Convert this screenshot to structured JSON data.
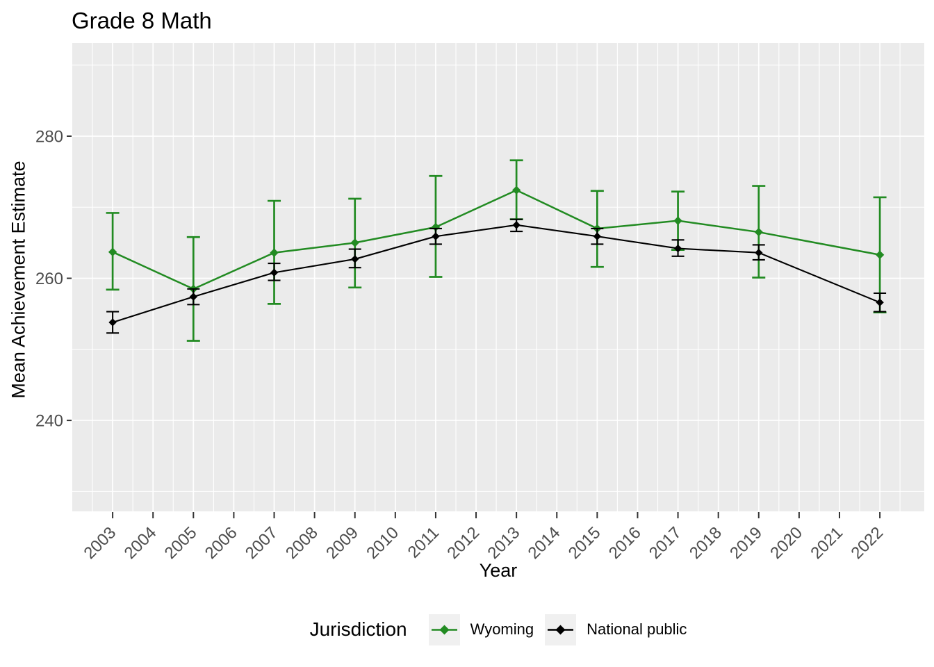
{
  "title": "Grade 8 Math",
  "legend": {
    "title": "Jurisdiction",
    "items": [
      {
        "label": "Wyoming",
        "color": "#228B22"
      },
      {
        "label": "National public",
        "color": "#000000"
      }
    ]
  },
  "colors": {
    "panel_background": "#EBEBEB",
    "gridline": "#FFFFFF",
    "tick_mark": "#333333",
    "tick_label": "#4D4D4D",
    "text": "#000000",
    "legend_key_background": "#F0F0F0"
  },
  "chart_data": {
    "type": "line",
    "title": "Grade 8 Math",
    "xlabel": "Year",
    "ylabel": "Mean Achievement Estimate",
    "legend_title": "Jurisdiction",
    "legend_position": "bottom",
    "grid": true,
    "error_bars": true,
    "x_ticks": [
      2003,
      2004,
      2005,
      2006,
      2007,
      2008,
      2009,
      2010,
      2011,
      2012,
      2013,
      2014,
      2015,
      2016,
      2017,
      2018,
      2019,
      2020,
      2021,
      2022
    ],
    "y_ticks": [
      240,
      260,
      280
    ],
    "y_minor_ticks": [
      230,
      250,
      270,
      290
    ],
    "xlim": [
      2002,
      2023.1
    ],
    "ylim": [
      227.2,
      293.1
    ],
    "series": [
      {
        "name": "Wyoming",
        "color": "#228B22",
        "points": [
          {
            "year": 2003,
            "value": 263.7,
            "lower": 258.4,
            "upper": 269.2
          },
          {
            "year": 2005,
            "value": 258.5,
            "lower": 251.2,
            "upper": 265.8
          },
          {
            "year": 2007,
            "value": 263.6,
            "lower": 256.4,
            "upper": 270.9
          },
          {
            "year": 2009,
            "value": 265.0,
            "lower": 258.7,
            "upper": 271.2
          },
          {
            "year": 2011,
            "value": 267.2,
            "lower": 260.2,
            "upper": 274.4
          },
          {
            "year": 2013,
            "value": 272.4,
            "lower": 268.3,
            "upper": 276.6
          },
          {
            "year": 2015,
            "value": 267.0,
            "lower": 261.6,
            "upper": 272.3
          },
          {
            "year": 2017,
            "value": 268.1,
            "lower": 264.0,
            "upper": 272.2
          },
          {
            "year": 2019,
            "value": 266.5,
            "lower": 260.1,
            "upper": 273.0
          },
          {
            "year": 2022,
            "value": 263.3,
            "lower": 255.2,
            "upper": 271.4
          }
        ]
      },
      {
        "name": "National public",
        "color": "#000000",
        "points": [
          {
            "year": 2003,
            "value": 253.8,
            "lower": 252.3,
            "upper": 255.3
          },
          {
            "year": 2005,
            "value": 257.4,
            "lower": 256.3,
            "upper": 258.5
          },
          {
            "year": 2007,
            "value": 260.8,
            "lower": 259.7,
            "upper": 262.1
          },
          {
            "year": 2009,
            "value": 262.7,
            "lower": 261.5,
            "upper": 264.1
          },
          {
            "year": 2011,
            "value": 265.9,
            "lower": 264.8,
            "upper": 267.0
          },
          {
            "year": 2013,
            "value": 267.5,
            "lower": 266.6,
            "upper": 268.3
          },
          {
            "year": 2015,
            "value": 265.9,
            "lower": 264.8,
            "upper": 267.0
          },
          {
            "year": 2017,
            "value": 264.2,
            "lower": 263.1,
            "upper": 265.4
          },
          {
            "year": 2019,
            "value": 263.6,
            "lower": 262.6,
            "upper": 264.7
          },
          {
            "year": 2022,
            "value": 256.6,
            "lower": 255.3,
            "upper": 257.9
          }
        ]
      }
    ]
  }
}
